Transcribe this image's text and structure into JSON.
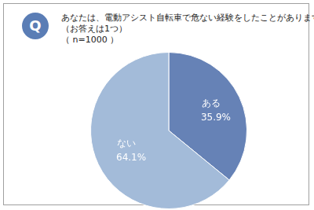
{
  "chart_data": {
    "type": "pie",
    "title": "あなたは、電動アシスト自転車で危ない経験をしたことがありますか。",
    "subtitle": "（お答えは1つ）",
    "annotations": [
      "Q",
      "（ n=1000 ）"
    ],
    "categories": [
      "ある",
      "ない"
    ],
    "values": [
      35.9,
      64.1
    ],
    "value_labels": [
      "35.9%",
      "64.1%"
    ],
    "colors": [
      "#6682b6",
      "#a3bbd9"
    ],
    "data_labels": true
  }
}
